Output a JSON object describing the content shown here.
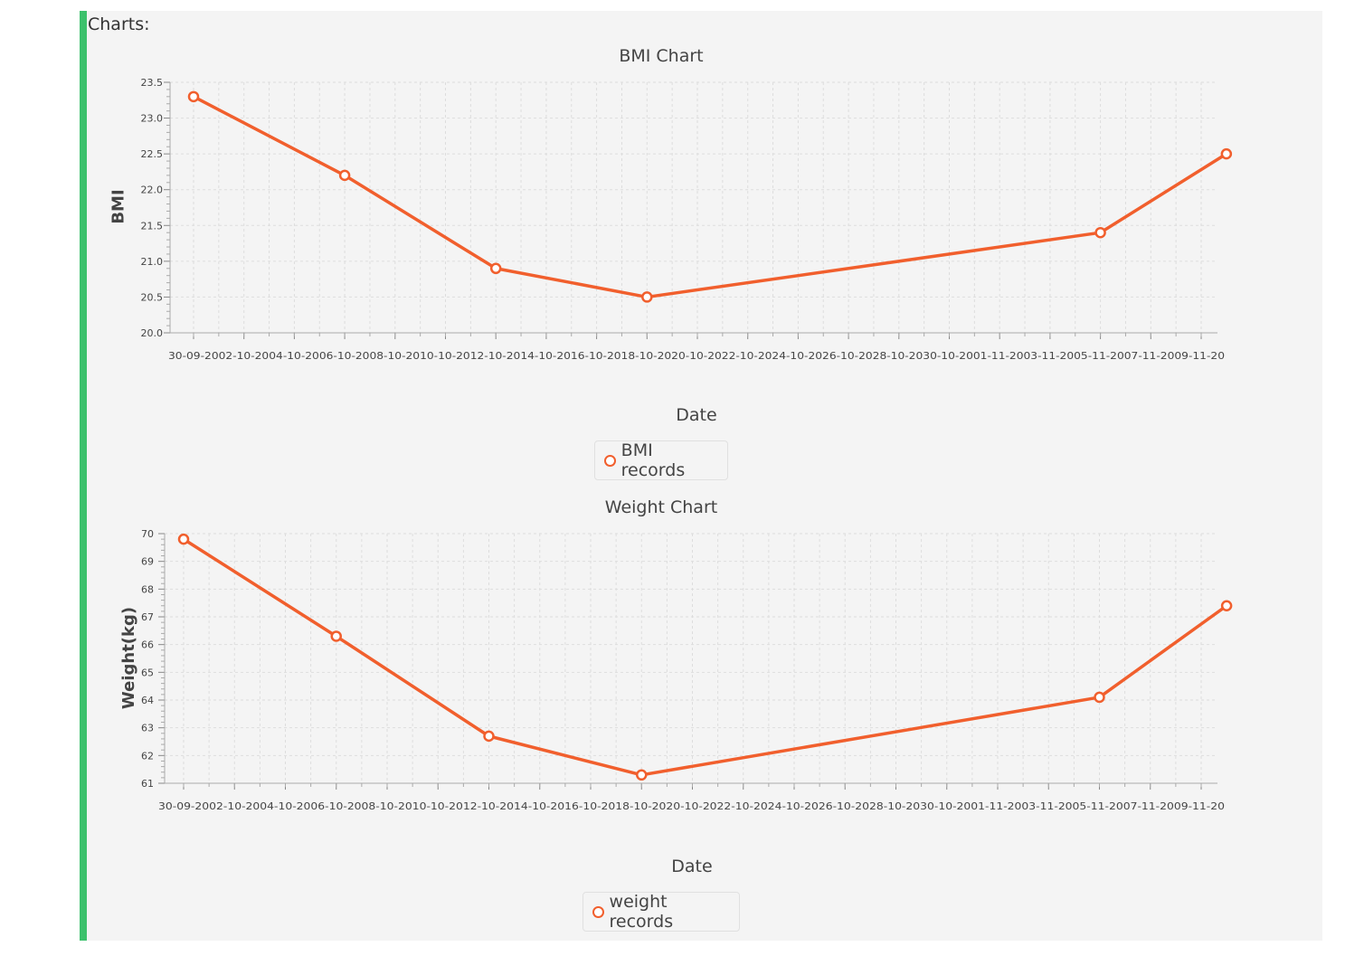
{
  "section": {
    "label": "Charts:"
  },
  "colors": {
    "accent": "#3cc16c",
    "series": "#f15f2d",
    "panel": "#f4f4f4",
    "grid": "#dddddd"
  },
  "chart_data": [
    {
      "type": "line",
      "title": "BMI Chart",
      "xlabel": "Date",
      "ylabel": "BMI",
      "legend": "BMI records",
      "legend_position": "bottom-center",
      "grid": true,
      "categories": [
        "30-09-20",
        "02-10-20",
        "04-10-20",
        "06-10-20",
        "08-10-20",
        "10-10-20",
        "12-10-20",
        "14-10-20",
        "16-10-20",
        "18-10-20",
        "20-10-20",
        "22-10-20",
        "24-10-20",
        "26-10-20",
        "28-10-20",
        "30-10-20",
        "01-11-20",
        "03-11-20",
        "05-11-20",
        "07-11-20",
        "09-11-20"
      ],
      "points": [
        {
          "x": "30-09-20",
          "y": 23.3
        },
        {
          "x": "06-10-20",
          "y": 22.2
        },
        {
          "x": "12-10-20",
          "y": 20.9
        },
        {
          "x": "18-10-20",
          "y": 20.5
        },
        {
          "x": "05-11-20",
          "y": 21.4
        },
        {
          "x": "10-11-20",
          "y": 22.5
        }
      ],
      "ylim": [
        20.0,
        23.5
      ],
      "yticks": [
        "20.0",
        "20.5",
        "21.0",
        "21.5",
        "22.0",
        "22.5",
        "23.0",
        "23.5"
      ],
      "series_name": "BMI records"
    },
    {
      "type": "line",
      "title": "Weight Chart",
      "xlabel": "Date",
      "ylabel": "Weight(kg)",
      "legend": "weight records",
      "legend_position": "bottom-center",
      "grid": true,
      "categories": [
        "30-09-20",
        "02-10-20",
        "04-10-20",
        "06-10-20",
        "08-10-20",
        "10-10-20",
        "12-10-20",
        "14-10-20",
        "16-10-20",
        "18-10-20",
        "20-10-20",
        "22-10-20",
        "24-10-20",
        "26-10-20",
        "28-10-20",
        "30-10-20",
        "01-11-20",
        "03-11-20",
        "05-11-20",
        "07-11-20",
        "09-11-20"
      ],
      "points": [
        {
          "x": "30-09-20",
          "y": 69.8
        },
        {
          "x": "06-10-20",
          "y": 66.3
        },
        {
          "x": "12-10-20",
          "y": 62.7
        },
        {
          "x": "18-10-20",
          "y": 61.3
        },
        {
          "x": "05-11-20",
          "y": 64.1
        },
        {
          "x": "10-11-20",
          "y": 67.4
        }
      ],
      "ylim": [
        61,
        70
      ],
      "yticks": [
        "61",
        "62",
        "63",
        "64",
        "65",
        "66",
        "67",
        "68",
        "69",
        "70"
      ],
      "series_name": "weight records"
    }
  ]
}
